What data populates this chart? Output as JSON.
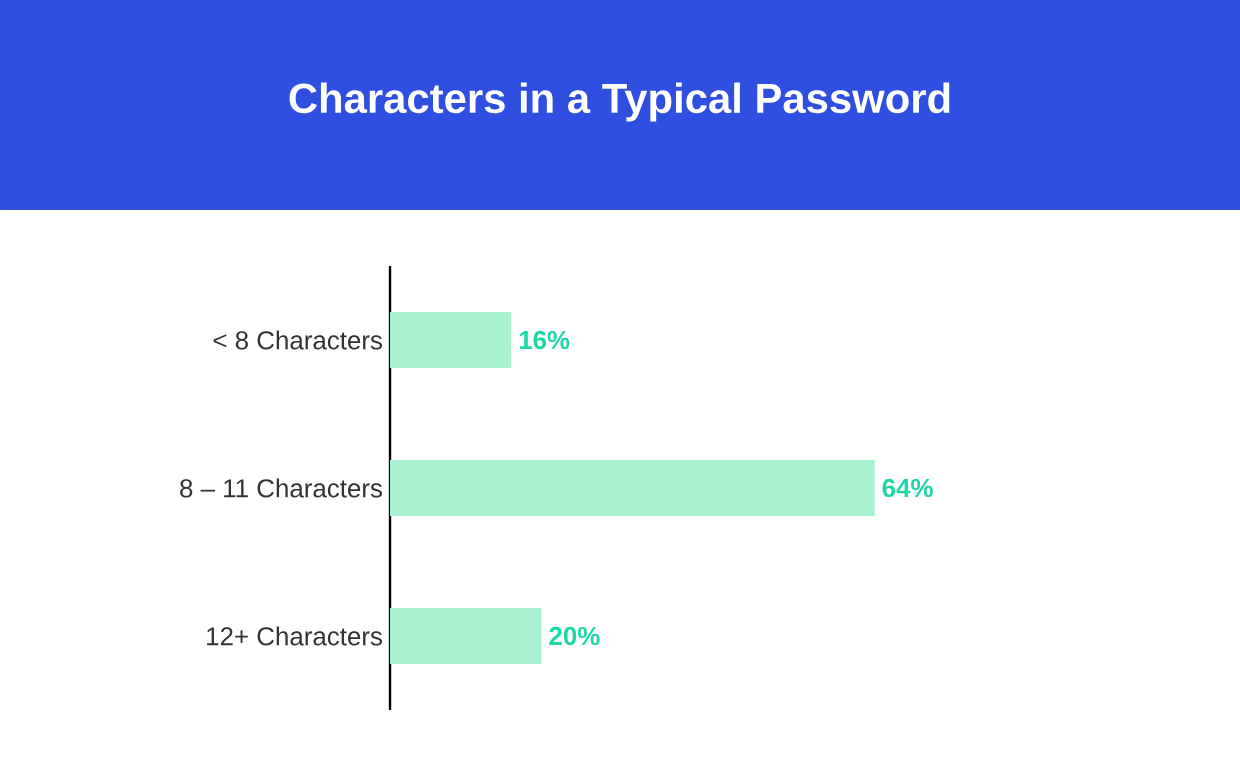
{
  "chart_data": {
    "type": "bar",
    "orientation": "horizontal",
    "title": "Characters in a Typical Password",
    "categories": [
      "< 8 Characters",
      "8 – 11 Characters",
      "12+ Characters"
    ],
    "values": [
      16,
      64,
      20
    ],
    "color": "#a8f2d2",
    "value_labels": [
      "16%",
      "64%",
      "20%"
    ]
  }
}
